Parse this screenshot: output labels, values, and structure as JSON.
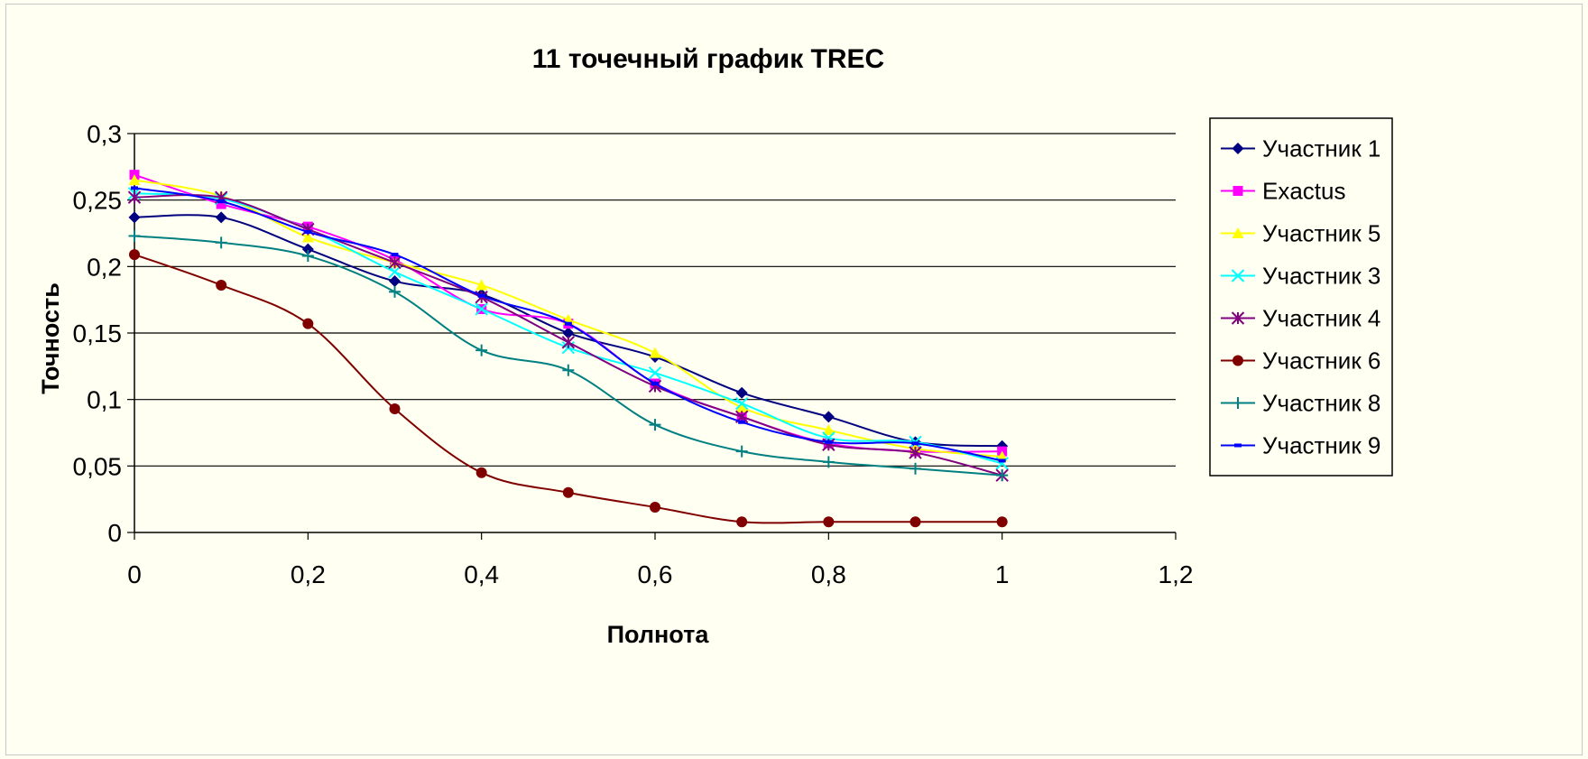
{
  "chart_data": {
    "type": "line",
    "title": "11 точечный график TREC",
    "xlabel": "Полнота",
    "ylabel": "Точность",
    "xlim": [
      0,
      1.2
    ],
    "ylim": [
      0,
      0.3
    ],
    "x_ticks": [
      "0",
      "0,2",
      "0,4",
      "0,6",
      "0,8",
      "1",
      "1,2"
    ],
    "y_ticks": [
      "0",
      "0,05",
      "0,1",
      "0,15",
      "0,2",
      "0,25",
      "0,3"
    ],
    "grid": "horizontal",
    "legend_position": "right",
    "x": [
      0,
      0.1,
      0.2,
      0.3,
      0.4,
      0.5,
      0.6,
      0.7,
      0.8,
      0.9,
      1.0
    ],
    "series": [
      {
        "name": "Участник 1",
        "color": "#000080",
        "marker": "diamond",
        "values": [
          0.237,
          0.237,
          0.213,
          0.189,
          0.179,
          0.15,
          0.132,
          0.105,
          0.087,
          0.068,
          0.065
        ]
      },
      {
        "name": "Exactus",
        "color": "#ff00ff",
        "marker": "square",
        "values": [
          0.269,
          0.247,
          0.23,
          0.205,
          0.168,
          0.157,
          0.112,
          0.087,
          0.067,
          0.061,
          0.061
        ]
      },
      {
        "name": "Участник 5",
        "color": "#ffff00",
        "marker": "triangle",
        "values": [
          0.265,
          0.253,
          0.222,
          0.203,
          0.186,
          0.16,
          0.135,
          0.094,
          0.077,
          0.063,
          0.057
        ]
      },
      {
        "name": "Участник 3",
        "color": "#00ffff",
        "marker": "x",
        "values": [
          0.255,
          0.251,
          0.228,
          0.196,
          0.168,
          0.139,
          0.12,
          0.097,
          0.071,
          0.068,
          0.052
        ]
      },
      {
        "name": "Участник 4",
        "color": "#800080",
        "marker": "star",
        "values": [
          0.252,
          0.252,
          0.228,
          0.203,
          0.177,
          0.143,
          0.11,
          0.087,
          0.066,
          0.06,
          0.043
        ]
      },
      {
        "name": "Участник 6",
        "color": "#800000",
        "marker": "circle",
        "values": [
          0.209,
          0.186,
          0.157,
          0.093,
          0.045,
          0.03,
          0.019,
          0.008,
          0.008,
          0.008,
          0.008
        ]
      },
      {
        "name": "Участник 8",
        "color": "#008080",
        "marker": "plus",
        "values": [
          0.223,
          0.218,
          0.208,
          0.181,
          0.137,
          0.122,
          0.081,
          0.061,
          0.053,
          0.048,
          0.043
        ]
      },
      {
        "name": "Участник 9",
        "color": "#0000ff",
        "marker": "dash",
        "values": [
          0.259,
          0.249,
          0.226,
          0.209,
          0.178,
          0.157,
          0.112,
          0.083,
          0.068,
          0.067,
          0.054
        ]
      }
    ]
  }
}
